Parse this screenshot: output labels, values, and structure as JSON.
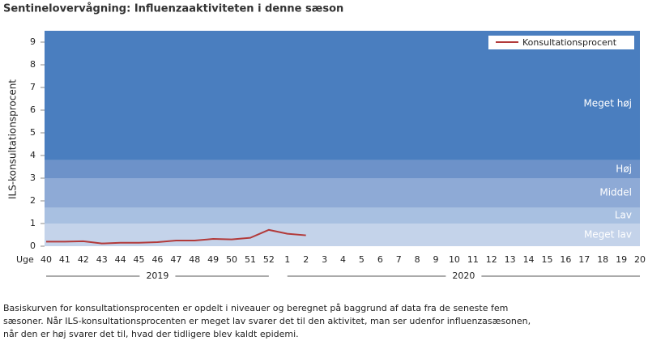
{
  "chart_data": {
    "type": "line",
    "title": "Sentinelovervågning: Influenzaaktiviteten i denne sæson",
    "y_label": "ILS-konsultationsprocent",
    "x_label": "Uge",
    "categories": [
      "40",
      "41",
      "42",
      "43",
      "44",
      "45",
      "46",
      "47",
      "48",
      "49",
      "50",
      "51",
      "52",
      "1",
      "2",
      "3",
      "4",
      "5",
      "6",
      "7",
      "8",
      "9",
      "10",
      "11",
      "12",
      "13",
      "14",
      "15",
      "16",
      "17",
      "18",
      "19",
      "20"
    ],
    "series": [
      {
        "name": "Konsultationsprocent",
        "color": "#b23a3a",
        "values": [
          0.2,
          0.2,
          0.22,
          0.12,
          0.15,
          0.15,
          0.18,
          0.25,
          0.25,
          0.32,
          0.3,
          0.37,
          0.72,
          0.55,
          0.48,
          null,
          null,
          null,
          null,
          null,
          null,
          null,
          null,
          null,
          null,
          null,
          null,
          null,
          null,
          null,
          null,
          null,
          null
        ]
      }
    ],
    "ylim": [
      0,
      9.5
    ],
    "yticks": [
      0,
      1,
      2,
      3,
      4,
      5,
      6,
      7,
      8,
      9
    ],
    "legend": "top-right",
    "bands": [
      {
        "label": "Meget lav",
        "from": 0,
        "to": 1,
        "color": "#c4d3ea"
      },
      {
        "label": "Lav",
        "from": 1,
        "to": 1.7,
        "color": "#a8c0e1"
      },
      {
        "label": "Middel",
        "from": 1.7,
        "to": 3,
        "color": "#8eaad6"
      },
      {
        "label": "Høj",
        "from": 3,
        "to": 3.8,
        "color": "#6d92c9"
      },
      {
        "label": "Meget høj",
        "from": 3.8,
        "to": 9.5,
        "color": "#4a7ebf"
      }
    ],
    "year_groups": [
      {
        "label": "2019",
        "from": "40",
        "to": "52"
      },
      {
        "label": "2020",
        "from": "1",
        "to": "20"
      }
    ],
    "note": [
      "Basiskurven for konsultationsprocenten er opdelt i niveauer og beregnet på baggrund af data fra de seneste fem",
      "sæsoner. Når ILS-konsultationsprocenten er meget lav svarer det til den aktivitet, man ser udenfor influenzasæsonen,",
      "når den er høj svarer det til, hvad der tidligere blev kaldt epidemi."
    ]
  }
}
